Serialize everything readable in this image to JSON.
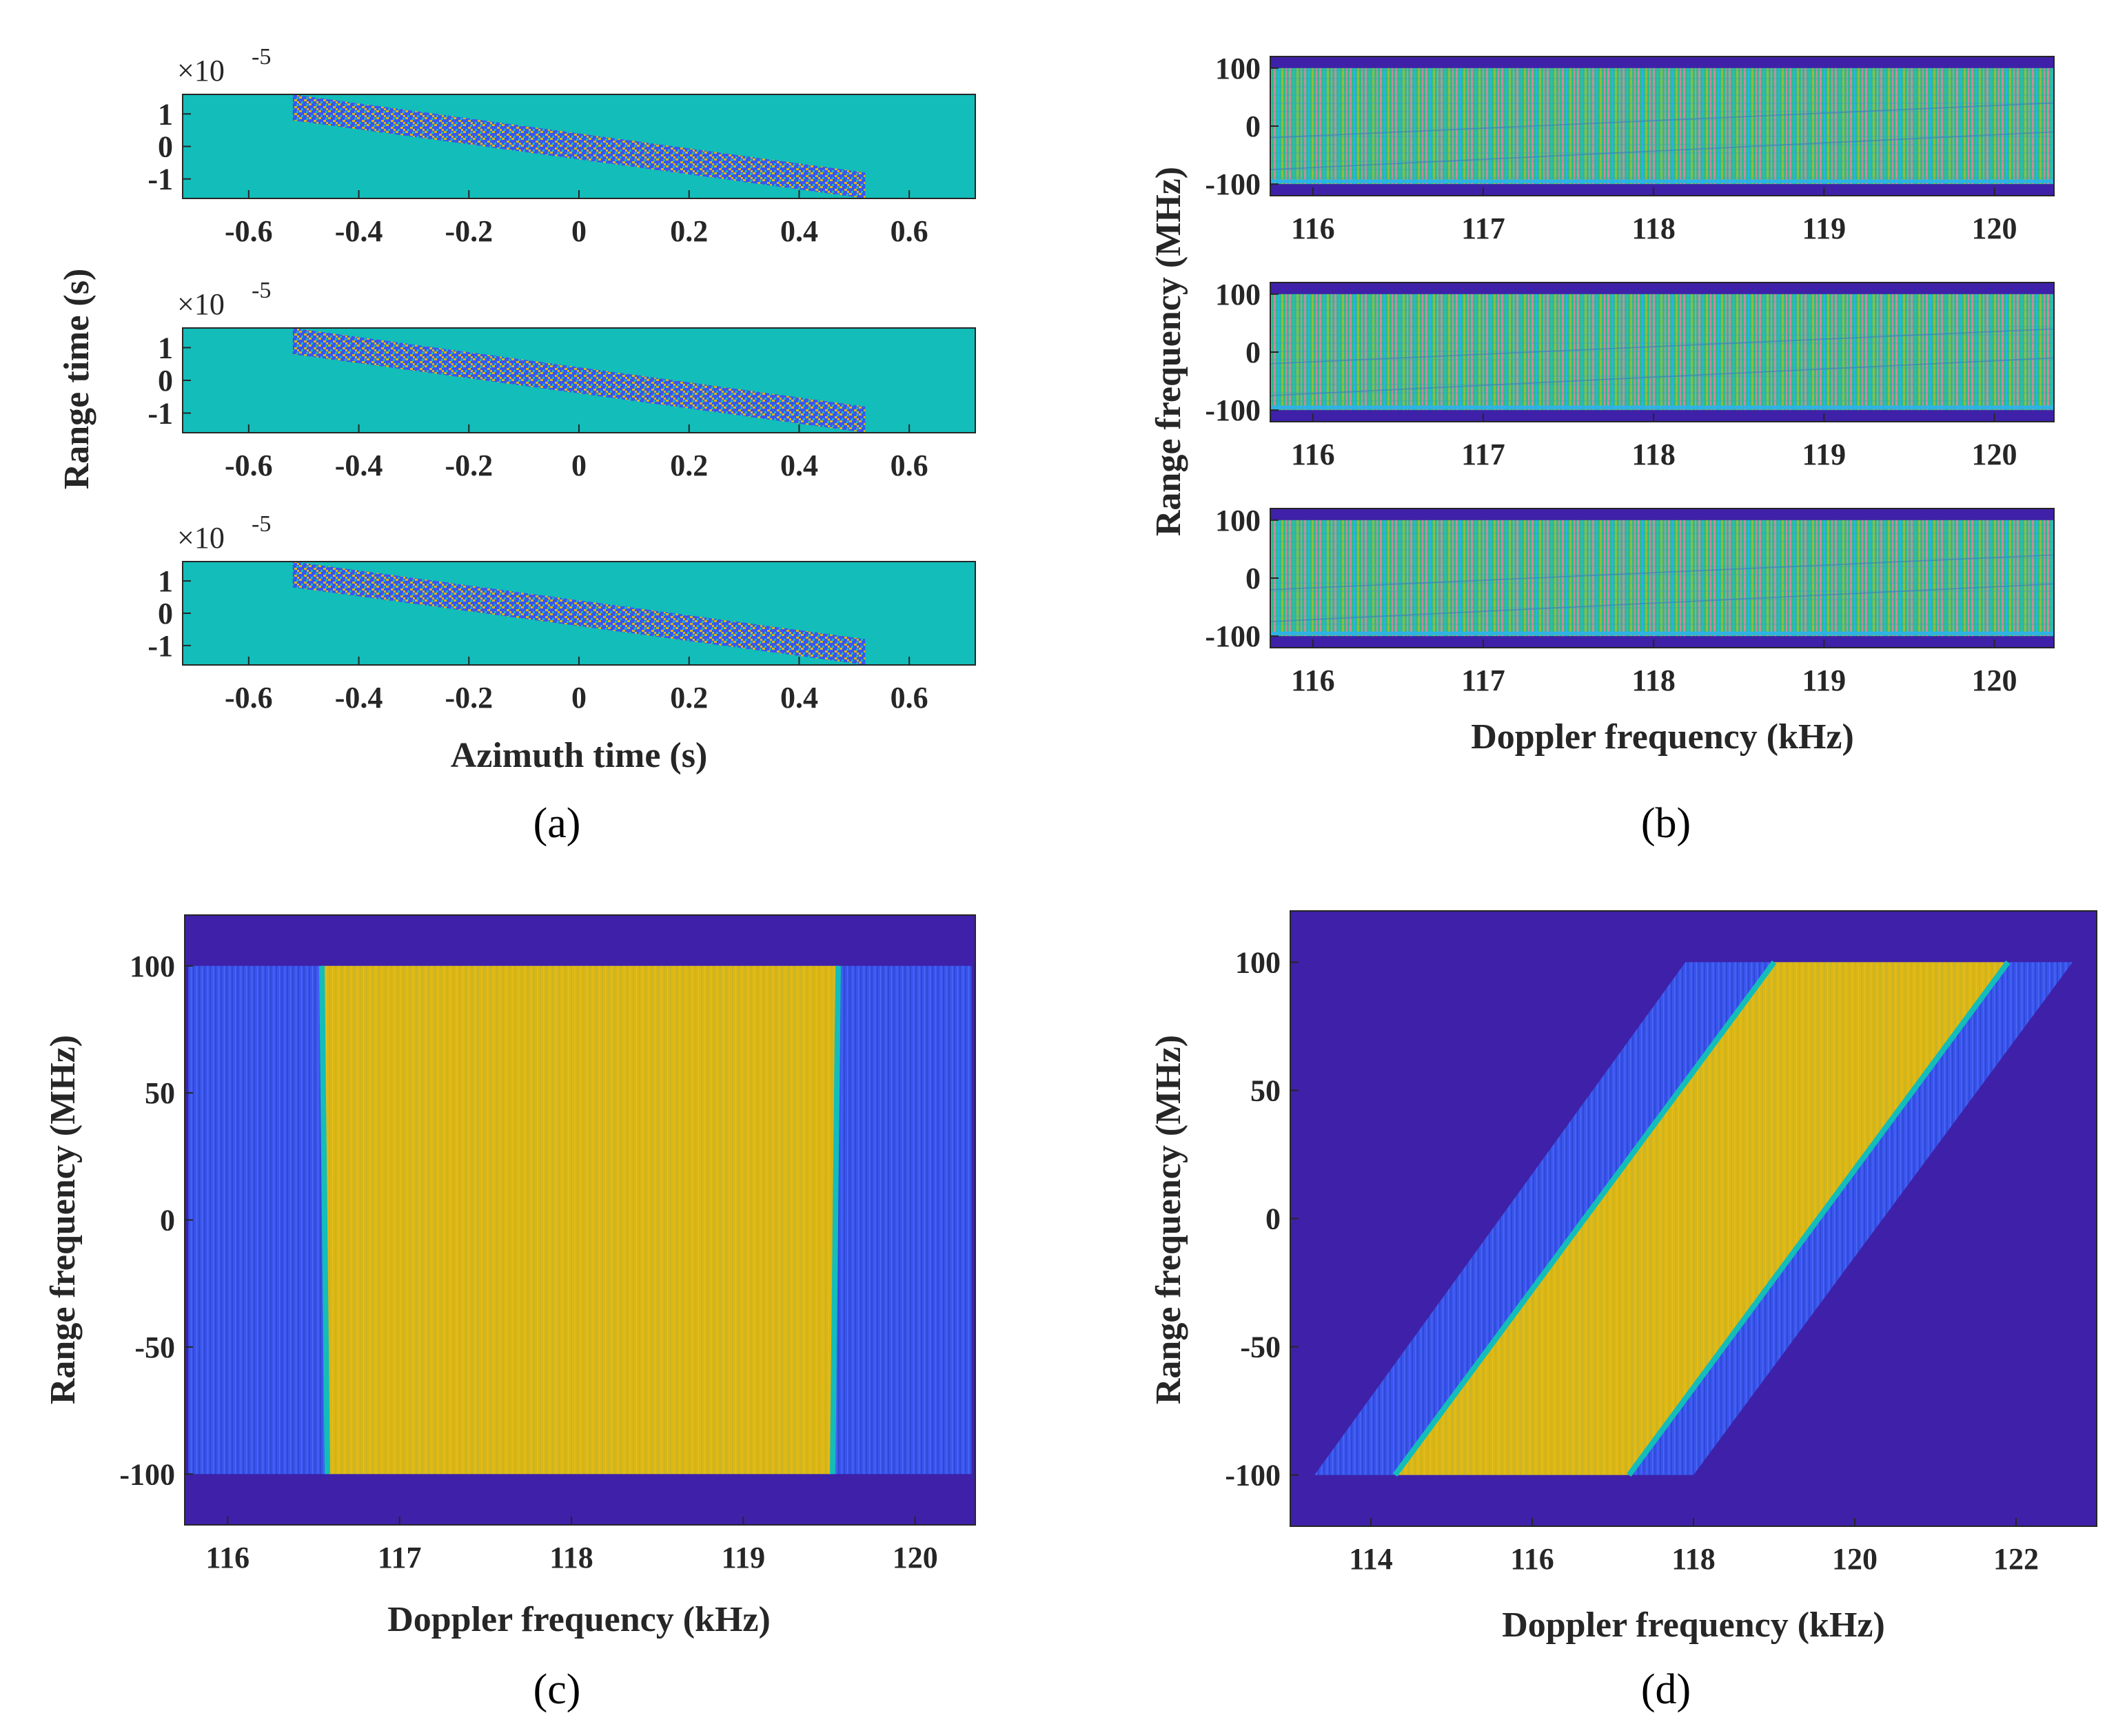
{
  "colors": {
    "teal": "#13bdb9",
    "navy": "#3e21a8",
    "blue": "#3a55ee",
    "yellow": "#dcb713",
    "green": "#2bbf86",
    "cyan": "#2db2e8",
    "pink": "#c98aa6"
  },
  "chart_data": [
    {
      "id": "a",
      "caption": "(a)",
      "type": "heatmap",
      "subplots": 3,
      "xlabel": "Azimuth time (s)",
      "ylabel": "Range time (s)",
      "y_scale_label": "×10",
      "y_scale_exp": "-5",
      "xlim": [
        -0.72,
        0.72
      ],
      "ylim": [
        -1.6,
        1.6
      ],
      "xticks": [
        -0.6,
        -0.4,
        -0.2,
        0,
        0.2,
        0.4,
        0.6
      ],
      "xtick_labels": [
        "-0.6",
        "-0.4",
        "-0.2",
        "0",
        "0.2",
        "0.4",
        "0.6"
      ],
      "yticks": [
        1,
        0,
        -1
      ],
      "ytick_labels": [
        "1",
        "0",
        "-1"
      ],
      "band": {
        "x_start": -0.52,
        "x_end": 0.52,
        "y_top_at_start": 1.6,
        "y_bottom_at_start": 0.8,
        "y_top_at_end": -0.8,
        "y_bottom_at_end": -1.6
      }
    },
    {
      "id": "b",
      "caption": "(b)",
      "type": "heatmap",
      "subplots": 3,
      "xlabel": "Doppler frequency (kHz)",
      "ylabel": "Range frequency (MHz)",
      "xlim": [
        115.75,
        120.35
      ],
      "ylim": [
        -120,
        120
      ],
      "xticks": [
        116,
        117,
        118,
        119,
        120
      ],
      "xtick_labels": [
        "116",
        "117",
        "118",
        "119",
        "120"
      ],
      "yticks": [
        100,
        0,
        -100
      ],
      "ytick_labels": [
        "100",
        "0",
        "-100"
      ],
      "band": {
        "f_min": -100,
        "f_max": 100
      }
    },
    {
      "id": "c",
      "caption": "(c)",
      "type": "heatmap",
      "xlabel": "Doppler frequency (kHz)",
      "ylabel": "Range frequency (MHz)",
      "xlim": [
        115.75,
        120.35
      ],
      "ylim": [
        -120,
        120
      ],
      "xticks": [
        116,
        117,
        118,
        119,
        120
      ],
      "xtick_labels": [
        "116",
        "117",
        "118",
        "119",
        "120"
      ],
      "yticks": [
        100,
        50,
        0,
        -50,
        -100
      ],
      "ytick_labels": [
        "100",
        "50",
        "0",
        "-50",
        "-100"
      ],
      "regions": {
        "blue_x": [
          115.77,
          120.33
        ],
        "yellow_x": [
          116.58,
          119.52
        ],
        "f": [
          -100,
          100
        ]
      }
    },
    {
      "id": "d",
      "caption": "(d)",
      "type": "heatmap",
      "xlabel": "Doppler frequency (kHz)",
      "ylabel": "Range frequency (MHz)",
      "xlim": [
        113.0,
        123.0
      ],
      "ylim": [
        -120,
        120
      ],
      "xticks": [
        114,
        116,
        118,
        120,
        122
      ],
      "xtick_labels": [
        "114",
        "116",
        "118",
        "120",
        "122"
      ],
      "yticks": [
        100,
        50,
        0,
        -50,
        -100
      ],
      "ytick_labels": [
        "100",
        "50",
        "0",
        "-50",
        "-100"
      ],
      "regions": {
        "blue_bottom": [
          113.3,
          118.0
        ],
        "blue_top": [
          117.9,
          122.7
        ],
        "yellow_bottom": [
          114.3,
          117.2
        ],
        "yellow_top": [
          119.0,
          121.9
        ],
        "f": [
          -100,
          100
        ]
      }
    }
  ]
}
